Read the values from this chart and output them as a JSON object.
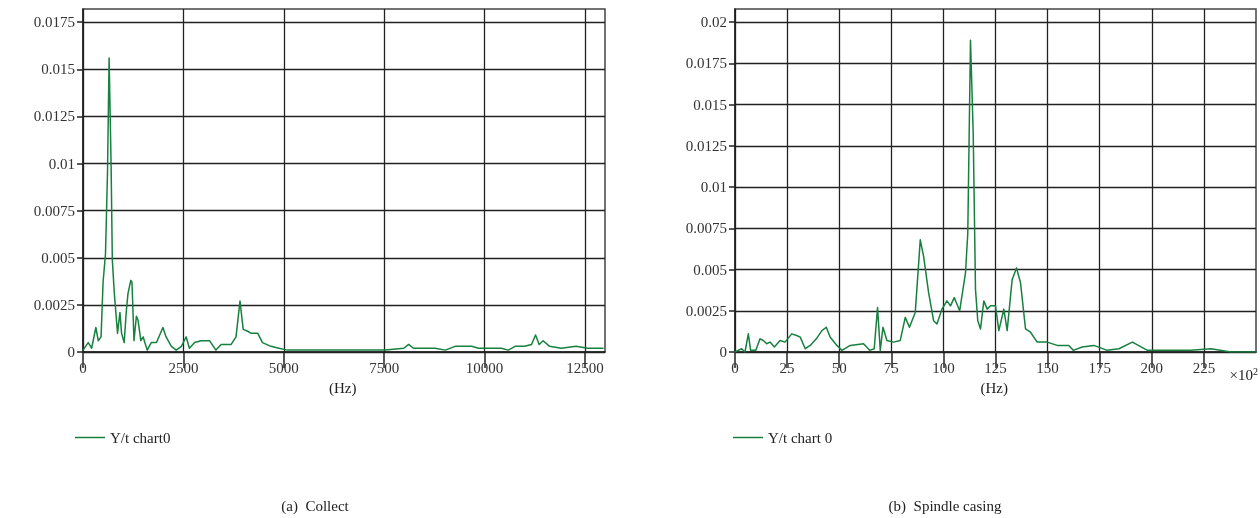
{
  "chart_data": [
    {
      "type": "line",
      "title": "(a)  Collect",
      "xlabel": "(Hz)",
      "xlim": [
        0,
        13000
      ],
      "xticks": [
        0,
        2500,
        5000,
        7500,
        10000,
        12500
      ],
      "ylim": [
        0,
        0.0182
      ],
      "yticks": [
        0,
        0.0025,
        0.005,
        0.0075,
        0.01,
        0.0125,
        0.015,
        0.0175
      ],
      "grid": true,
      "legend": "bottom left",
      "marker": "none",
      "line_style": "solid",
      "series": [
        {
          "name": "Y/t chart0",
          "color": "#17803f",
          "x": [
            0,
            130,
            215,
            320,
            380,
            450,
            500,
            560,
            610,
            650,
            700,
            730,
            780,
            860,
            920,
            960,
            1025,
            1080,
            1120,
            1190,
            1220,
            1270,
            1330,
            1370,
            1440,
            1500,
            1540,
            1600,
            1700,
            1830,
            1990,
            2070,
            2200,
            2320,
            2450,
            2570,
            2650,
            2780,
            2940,
            3150,
            3310,
            3440,
            3690,
            3810,
            3910,
            3990,
            4100,
            4180,
            4350,
            4470,
            4680,
            4880,
            5090,
            5590,
            6080,
            6830,
            7030,
            7320,
            7530,
            7990,
            8110,
            8230,
            8770,
            9020,
            9270,
            9680,
            9850,
            10420,
            10590,
            10760,
            11000,
            11170,
            11270,
            11360,
            11460,
            11620,
            11910,
            12280,
            12570,
            12950
          ],
          "values": [
            0.0001,
            0.0005,
            0.0002,
            0.0013,
            0.0006,
            0.0008,
            0.0037,
            0.0052,
            0.0095,
            0.0156,
            0.0099,
            0.0049,
            0.0031,
            0.001,
            0.0021,
            0.001,
            0.0005,
            0.0022,
            0.0031,
            0.0038,
            0.0037,
            0.0006,
            0.0019,
            0.0017,
            0.0006,
            0.0008,
            0.0005,
            0.0001,
            0.0005,
            0.0005,
            0.0013,
            0.0008,
            0.0003,
            0.0001,
            0.0003,
            0.0008,
            0.0002,
            0.0005,
            0.0006,
            0.0006,
            0.0001,
            0.0004,
            0.0004,
            0.0008,
            0.0027,
            0.0012,
            0.0011,
            0.001,
            0.001,
            0.0005,
            0.0003,
            0.0002,
            0.0001,
            0.0001,
            0.0001,
            0.0001,
            0.0001,
            0.0001,
            0.0001,
            0.0002,
            0.0004,
            0.0002,
            0.0002,
            0.0001,
            0.0003,
            0.0003,
            0.0002,
            0.0002,
            0.0001,
            0.0003,
            0.0003,
            0.0004,
            0.0009,
            0.0004,
            0.0006,
            0.0003,
            0.0002,
            0.0003,
            0.0002,
            0.0002
          ]
        }
      ]
    },
    {
      "type": "line",
      "title": "(b)  Spindle casing",
      "xlabel": "(Hz)",
      "annotations": [
        "×10$^{2}$"
      ],
      "xlim": [
        0,
        250
      ],
      "xticks": [
        0,
        25,
        50,
        75,
        100,
        125,
        150,
        175,
        200,
        225
      ],
      "ylim": [
        0,
        0.0208
      ],
      "yticks": [
        0,
        0.0025,
        0.005,
        0.0075,
        0.01,
        0.0125,
        0.015,
        0.0175,
        0.02
      ],
      "grid": true,
      "legend": "bottom left",
      "marker": "none",
      "line_style": "solid",
      "series": [
        {
          "name": "Y/t chart 0",
          "color": "#17803f",
          "x": [
            0,
            3.2,
            4.8,
            6.4,
            7.5,
            10,
            12,
            13.6,
            15.2,
            16.8,
            18.9,
            21.6,
            24,
            27.2,
            29.6,
            31.3,
            33.7,
            36.1,
            39,
            41.7,
            43.8,
            45.7,
            48.9,
            51.3,
            55.3,
            61.7,
            64.6,
            66.8,
            68.4,
            69.7,
            71,
            72.9,
            76.1,
            79.3,
            81.7,
            83.7,
            86.5,
            88.9,
            90.5,
            92.9,
            95.3,
            96.9,
            99.3,
            101.7,
            103.4,
            105.2,
            107.8,
            110.6,
            111.7,
            113,
            114.3,
            115.4,
            116.5,
            117.8,
            119.4,
            121,
            122.6,
            125,
            126.6,
            129,
            130.6,
            133,
            135.1,
            137,
            139.4,
            141.8,
            145,
            149.8,
            154.6,
            160.2,
            162.3,
            166.6,
            172.2,
            178.6,
            184.2,
            190.7,
            197.9,
            205.9,
            218.8,
            228.4,
            238,
            250
          ],
          "values": [
            0,
            0.0002,
            0,
            0.0011,
            0.0001,
            0.0001,
            0.0008,
            0.0007,
            0.0005,
            0.0006,
            0.0003,
            0.0007,
            0.0006,
            0.0011,
            0.001,
            0.0009,
            0.0002,
            0.0004,
            0.0008,
            0.0013,
            0.0015,
            0.0009,
            0.0004,
            0.0001,
            0.0004,
            0.0005,
            0.0001,
            0.0002,
            0.0027,
            0.0001,
            0.0015,
            0.0007,
            0.0006,
            0.0007,
            0.0021,
            0.0015,
            0.0024,
            0.0068,
            0.0058,
            0.0036,
            0.0019,
            0.0017,
            0.0026,
            0.0031,
            0.0028,
            0.0033,
            0.0025,
            0.0048,
            0.0072,
            0.0189,
            0.0133,
            0.0038,
            0.0019,
            0.0014,
            0.0031,
            0.0026,
            0.0028,
            0.0028,
            0.0013,
            0.0026,
            0.0013,
            0.0044,
            0.0051,
            0.0042,
            0.0014,
            0.0012,
            0.0006,
            0.0006,
            0.0004,
            0.0004,
            0.0001,
            0.0003,
            0.0004,
            0.0001,
            0.0002,
            0.0006,
            0.0001,
            0.0001,
            0.0001,
            0.0002,
            0,
            0
          ]
        }
      ]
    }
  ]
}
